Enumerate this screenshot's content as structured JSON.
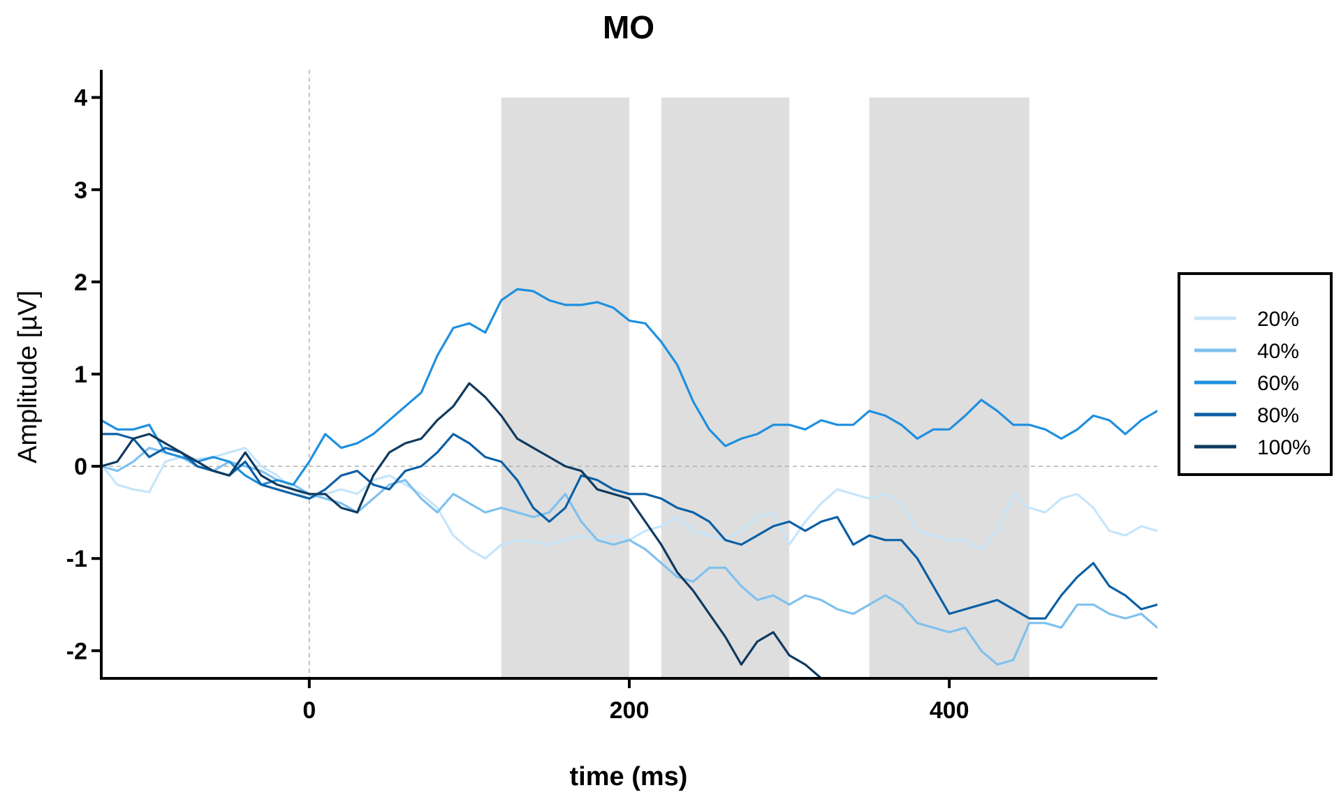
{
  "chart_data": {
    "type": "line",
    "title": "MO",
    "xlabel": "time (ms)",
    "ylabel": "Amplitude [µV]",
    "xlim": [
      -130,
      530
    ],
    "ylim": [
      -2.3,
      4.3
    ],
    "xticks": [
      0,
      200,
      400
    ],
    "yticks": [
      -2,
      -1,
      0,
      1,
      2,
      3,
      4
    ],
    "reference_lines": {
      "x": 0,
      "y": 0
    },
    "shaded_windows": [
      {
        "x0": 120,
        "x1": 200,
        "y0": -2.3,
        "y1": 4
      },
      {
        "x0": 220,
        "x1": 300,
        "y0": -2.3,
        "y1": 4
      },
      {
        "x0": 350,
        "x1": 450,
        "y0": -2.3,
        "y1": 4
      }
    ],
    "legend_position": "right",
    "series": [
      {
        "name": "20%",
        "color": "#c6e5fa",
        "x": [
          -130,
          -120,
          -110,
          -100,
          -90,
          -80,
          -70,
          -60,
          -50,
          -40,
          -30,
          -20,
          -10,
          0,
          10,
          20,
          30,
          40,
          50,
          60,
          70,
          80,
          90,
          100,
          110,
          120,
          130,
          140,
          150,
          160,
          170,
          180,
          190,
          200,
          210,
          220,
          230,
          240,
          250,
          260,
          270,
          280,
          290,
          300,
          310,
          320,
          330,
          340,
          350,
          360,
          370,
          380,
          390,
          400,
          410,
          420,
          430,
          440,
          450,
          460,
          470,
          480,
          490,
          500,
          510,
          520,
          530
        ],
        "y": [
          0.02,
          -0.2,
          -0.25,
          -0.28,
          0.05,
          0.1,
          0.08,
          0.1,
          0.15,
          0.2,
          0.0,
          -0.1,
          -0.25,
          -0.35,
          -0.3,
          -0.25,
          -0.3,
          -0.15,
          -0.1,
          -0.2,
          -0.3,
          -0.45,
          -0.75,
          -0.9,
          -1.0,
          -0.85,
          -0.8,
          -0.82,
          -0.85,
          -0.8,
          -0.75,
          -0.8,
          -0.75,
          -0.8,
          -0.7,
          -0.65,
          -0.55,
          -0.7,
          -0.75,
          -0.8,
          -0.7,
          -0.55,
          -0.5,
          -0.85,
          -0.6,
          -0.4,
          -0.25,
          -0.3,
          -0.35,
          -0.3,
          -0.4,
          -0.7,
          -0.75,
          -0.8,
          -0.8,
          -0.9,
          -0.7,
          -0.3,
          -0.45,
          -0.5,
          -0.35,
          -0.3,
          -0.45,
          -0.7,
          -0.75,
          -0.65,
          -0.7
        ]
      },
      {
        "name": "40%",
        "color": "#7fc1ee",
        "x": [
          -130,
          -120,
          -110,
          -100,
          -90,
          -80,
          -70,
          -60,
          -50,
          -40,
          -30,
          -20,
          -10,
          0,
          10,
          20,
          30,
          40,
          50,
          60,
          70,
          80,
          90,
          100,
          110,
          120,
          130,
          140,
          150,
          160,
          170,
          180,
          190,
          200,
          210,
          220,
          230,
          240,
          250,
          260,
          270,
          280,
          290,
          300,
          310,
          320,
          330,
          340,
          350,
          360,
          370,
          380,
          390,
          400,
          410,
          420,
          430,
          440,
          450,
          460,
          470,
          480,
          490,
          500,
          510,
          520,
          530
        ],
        "y": [
          0.0,
          -0.05,
          0.05,
          0.2,
          0.15,
          0.1,
          0.0,
          -0.05,
          0.05,
          0.0,
          -0.05,
          -0.15,
          -0.2,
          -0.3,
          -0.35,
          -0.4,
          -0.5,
          -0.35,
          -0.2,
          -0.15,
          -0.35,
          -0.5,
          -0.3,
          -0.4,
          -0.5,
          -0.45,
          -0.5,
          -0.55,
          -0.5,
          -0.3,
          -0.6,
          -0.8,
          -0.85,
          -0.8,
          -0.9,
          -1.05,
          -1.2,
          -1.25,
          -1.1,
          -1.1,
          -1.3,
          -1.45,
          -1.4,
          -1.5,
          -1.4,
          -1.45,
          -1.55,
          -1.6,
          -1.5,
          -1.4,
          -1.5,
          -1.7,
          -1.75,
          -1.8,
          -1.75,
          -2.0,
          -2.15,
          -2.1,
          -1.7,
          -1.7,
          -1.75,
          -1.5,
          -1.5,
          -1.6,
          -1.65,
          -1.6,
          -1.75
        ]
      },
      {
        "name": "60%",
        "color": "#1e8fe0",
        "x": [
          -130,
          -120,
          -110,
          -100,
          -90,
          -80,
          -70,
          -60,
          -50,
          -40,
          -30,
          -20,
          -10,
          0,
          10,
          20,
          30,
          40,
          50,
          60,
          70,
          80,
          90,
          100,
          110,
          120,
          130,
          140,
          150,
          160,
          170,
          180,
          190,
          200,
          210,
          220,
          230,
          240,
          250,
          260,
          270,
          280,
          290,
          300,
          310,
          320,
          330,
          340,
          350,
          360,
          370,
          380,
          390,
          400,
          410,
          420,
          430,
          440,
          450,
          460,
          470,
          480,
          490,
          500,
          510,
          520,
          530
        ],
        "y": [
          0.5,
          0.4,
          0.4,
          0.45,
          0.15,
          0.1,
          0.05,
          0.1,
          0.05,
          -0.1,
          -0.2,
          -0.15,
          -0.2,
          0.05,
          0.35,
          0.2,
          0.25,
          0.35,
          0.5,
          0.65,
          0.8,
          1.2,
          1.5,
          1.55,
          1.45,
          1.8,
          1.92,
          1.9,
          1.8,
          1.75,
          1.75,
          1.78,
          1.72,
          1.58,
          1.55,
          1.35,
          1.1,
          0.7,
          0.4,
          0.22,
          0.3,
          0.35,
          0.45,
          0.45,
          0.4,
          0.5,
          0.45,
          0.45,
          0.6,
          0.55,
          0.45,
          0.3,
          0.4,
          0.4,
          0.55,
          0.72,
          0.6,
          0.45,
          0.45,
          0.4,
          0.3,
          0.4,
          0.55,
          0.5,
          0.35,
          0.5,
          0.6
        ]
      },
      {
        "name": "80%",
        "color": "#0b5fa5",
        "x": [
          -130,
          -120,
          -110,
          -100,
          -90,
          -80,
          -70,
          -60,
          -50,
          -40,
          -30,
          -20,
          -10,
          0,
          10,
          20,
          30,
          40,
          50,
          60,
          70,
          80,
          90,
          100,
          110,
          120,
          130,
          140,
          150,
          160,
          170,
          180,
          190,
          200,
          210,
          220,
          230,
          240,
          250,
          260,
          270,
          280,
          290,
          300,
          310,
          320,
          330,
          340,
          350,
          360,
          370,
          380,
          390,
          400,
          410,
          420,
          430,
          440,
          450,
          460,
          470,
          480,
          490,
          500,
          510,
          520,
          530
        ],
        "y": [
          0.35,
          0.35,
          0.3,
          0.1,
          0.2,
          0.15,
          0.0,
          -0.05,
          -0.1,
          0.05,
          -0.2,
          -0.25,
          -0.3,
          -0.35,
          -0.25,
          -0.1,
          -0.05,
          -0.2,
          -0.25,
          -0.05,
          0.0,
          0.15,
          0.35,
          0.25,
          0.1,
          0.05,
          -0.15,
          -0.45,
          -0.6,
          -0.45,
          -0.1,
          -0.15,
          -0.25,
          -0.3,
          -0.3,
          -0.35,
          -0.45,
          -0.5,
          -0.6,
          -0.8,
          -0.85,
          -0.75,
          -0.65,
          -0.6,
          -0.7,
          -0.6,
          -0.55,
          -0.85,
          -0.75,
          -0.8,
          -0.8,
          -1.0,
          -1.3,
          -1.6,
          -1.55,
          -1.5,
          -1.45,
          -1.55,
          -1.65,
          -1.65,
          -1.4,
          -1.2,
          -1.05,
          -1.3,
          -1.4,
          -1.55,
          -1.5
        ]
      },
      {
        "name": "100%",
        "color": "#0f3a5f",
        "x": [
          -130,
          -120,
          -110,
          -100,
          -90,
          -80,
          -70,
          -60,
          -50,
          -40,
          -30,
          -20,
          -10,
          0,
          10,
          20,
          30,
          40,
          50,
          60,
          70,
          80,
          90,
          100,
          110,
          120,
          130,
          140,
          150,
          160,
          170,
          180,
          190,
          200,
          210,
          220,
          230,
          240,
          250,
          260,
          270,
          280,
          290,
          300,
          310,
          320
        ],
        "y": [
          0.0,
          0.05,
          0.3,
          0.35,
          0.25,
          0.15,
          0.05,
          -0.05,
          -0.1,
          0.15,
          -0.1,
          -0.2,
          -0.25,
          -0.3,
          -0.3,
          -0.45,
          -0.5,
          -0.1,
          0.15,
          0.25,
          0.3,
          0.5,
          0.65,
          0.9,
          0.75,
          0.55,
          0.3,
          0.2,
          0.1,
          0.0,
          -0.05,
          -0.25,
          -0.3,
          -0.35,
          -0.6,
          -0.85,
          -1.15,
          -1.35,
          -1.6,
          -1.85,
          -2.15,
          -1.9,
          -1.8,
          -2.05,
          -2.15,
          -2.3
        ]
      }
    ]
  }
}
